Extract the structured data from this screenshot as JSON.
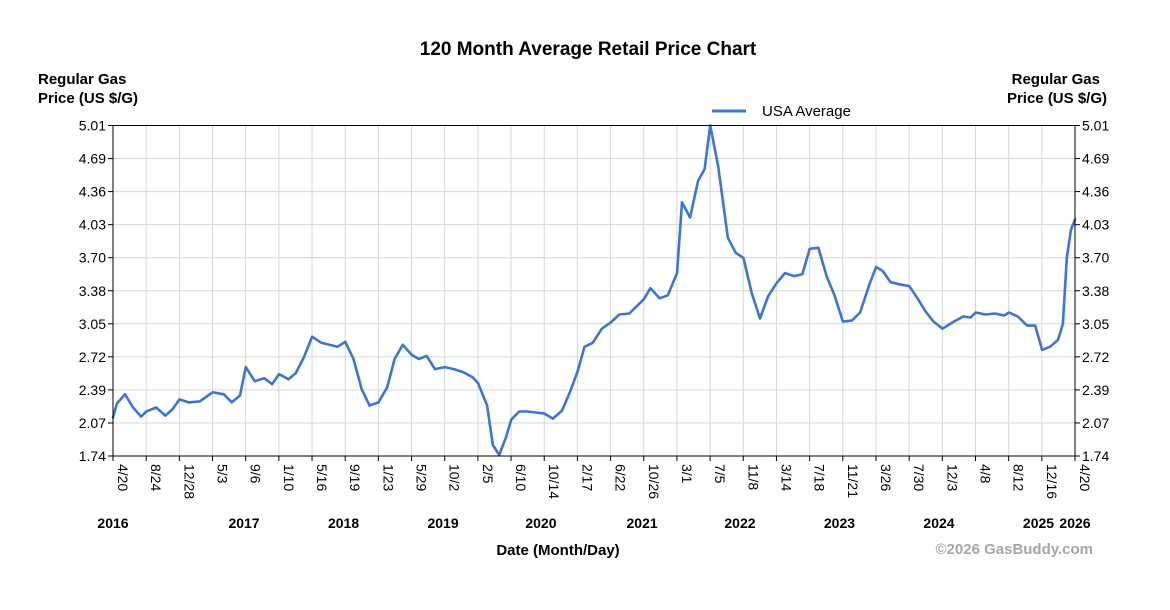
{
  "chart_data": {
    "type": "line",
    "title": "120 Month Average Retail Price Chart",
    "ylabel_left": [
      "Regular Gas",
      "Price (US $/G)"
    ],
    "ylabel_right": [
      "Regular Gas",
      "Price (US $/G)"
    ],
    "xlabel": "Date (Month/Day)",
    "copyright": "©2026 GasBuddy.com",
    "ylim": [
      1.74,
      5.01
    ],
    "yticks": [
      "5.01",
      "4.69",
      "4.36",
      "4.03",
      "3.70",
      "3.38",
      "3.05",
      "2.72",
      "2.39",
      "2.07",
      "1.74"
    ],
    "xticks": [
      "4/20",
      "8/24",
      "12/28",
      "5/3",
      "9/6",
      "1/10",
      "5/16",
      "9/19",
      "1/23",
      "5/29",
      "10/2",
      "2/5",
      "6/10",
      "10/14",
      "2/17",
      "6/22",
      "10/26",
      "3/1",
      "7/5",
      "11/8",
      "3/14",
      "7/18",
      "11/21",
      "3/26",
      "7/30",
      "12/3",
      "4/8",
      "8/12",
      "12/16",
      "4/20"
    ],
    "years": [
      "2016",
      "2017",
      "2018",
      "2019",
      "2020",
      "2021",
      "2022",
      "2023",
      "2024",
      "2025",
      "2026"
    ],
    "grid": true,
    "legend_position": "top-right",
    "series": [
      {
        "name": "USA Average",
        "color": "#3d76d0",
        "x": [
          "2016-04-20",
          "2016-05-05",
          "2016-06-05",
          "2016-07-05",
          "2016-08-05",
          "2016-08-24",
          "2016-10-01",
          "2016-11-05",
          "2016-12-01",
          "2016-12-28",
          "2017-02-01",
          "2017-03-15",
          "2017-05-03",
          "2017-06-15",
          "2017-07-15",
          "2017-08-15",
          "2017-09-06",
          "2017-10-10",
          "2017-11-15",
          "2017-12-15",
          "2018-01-10",
          "2018-02-15",
          "2018-03-15",
          "2018-04-15",
          "2018-05-16",
          "2018-06-20",
          "2018-07-20",
          "2018-08-20",
          "2018-09-19",
          "2018-10-20",
          "2018-11-20",
          "2018-12-20",
          "2019-01-23",
          "2019-02-25",
          "2019-03-25",
          "2019-04-25",
          "2019-05-29",
          "2019-06-25",
          "2019-07-25",
          "2019-08-25",
          "2019-10-02",
          "2019-11-05",
          "2019-12-10",
          "2020-01-15",
          "2020-02-05",
          "2020-03-10",
          "2020-04-01",
          "2020-04-25",
          "2020-05-20",
          "2020-06-10",
          "2020-07-10",
          "2020-08-10",
          "2020-09-10",
          "2020-10-14",
          "2020-11-15",
          "2020-12-20",
          "2021-01-20",
          "2021-02-17",
          "2021-03-15",
          "2021-04-15",
          "2021-05-20",
          "2021-06-22",
          "2021-07-25",
          "2021-09-01",
          "2021-10-26",
          "2021-11-20",
          "2021-12-25",
          "2022-01-25",
          "2022-03-01",
          "2022-03-20",
          "2022-04-20",
          "2022-05-20",
          "2022-06-14",
          "2022-07-05",
          "2022-08-05",
          "2022-09-10",
          "2022-10-10",
          "2022-11-08",
          "2022-12-10",
          "2023-01-10",
          "2023-02-10",
          "2023-03-14",
          "2023-04-15",
          "2023-05-20",
          "2023-06-20",
          "2023-07-18",
          "2023-08-20",
          "2023-09-20",
          "2023-10-20",
          "2023-11-21",
          "2023-12-25",
          "2024-01-25",
          "2024-03-01",
          "2024-03-26",
          "2024-04-20",
          "2024-05-20",
          "2024-06-20",
          "2024-07-30",
          "2024-08-30",
          "2024-09-30",
          "2024-10-30",
          "2024-12-03",
          "2025-01-15",
          "2025-02-20",
          "2025-03-20",
          "2025-04-08",
          "2025-05-15",
          "2025-06-20",
          "2025-07-25",
          "2025-08-12",
          "2025-09-15",
          "2025-10-20",
          "2025-11-20",
          "2025-12-16",
          "2026-01-15",
          "2026-02-15",
          "2026-03-05",
          "2026-03-20",
          "2026-04-05",
          "2026-04-20"
        ],
        "y": [
          2.12,
          2.26,
          2.35,
          2.22,
          2.13,
          2.18,
          2.22,
          2.14,
          2.2,
          2.3,
          2.27,
          2.28,
          2.37,
          2.35,
          2.27,
          2.34,
          2.62,
          2.48,
          2.51,
          2.45,
          2.55,
          2.5,
          2.56,
          2.72,
          2.92,
          2.86,
          2.84,
          2.82,
          2.87,
          2.7,
          2.4,
          2.24,
          2.27,
          2.42,
          2.7,
          2.84,
          2.74,
          2.7,
          2.73,
          2.6,
          2.62,
          2.6,
          2.57,
          2.52,
          2.46,
          2.24,
          1.85,
          1.75,
          1.92,
          2.1,
          2.18,
          2.18,
          2.17,
          2.16,
          2.11,
          2.19,
          2.38,
          2.58,
          2.82,
          2.86,
          3.0,
          3.06,
          3.14,
          3.15,
          3.29,
          3.4,
          3.3,
          3.33,
          3.55,
          4.25,
          4.1,
          4.46,
          4.58,
          5.01,
          4.6,
          3.9,
          3.75,
          3.7,
          3.35,
          3.1,
          3.32,
          3.45,
          3.55,
          3.52,
          3.54,
          3.79,
          3.8,
          3.52,
          3.33,
          3.07,
          3.08,
          3.16,
          3.44,
          3.61,
          3.57,
          3.46,
          3.44,
          3.42,
          3.3,
          3.17,
          3.07,
          3.0,
          3.07,
          3.12,
          3.11,
          3.16,
          3.14,
          3.15,
          3.13,
          3.16,
          3.12,
          3.03,
          3.03,
          2.79,
          2.82,
          2.89,
          3.05,
          3.7,
          3.98,
          4.08
        ]
      }
    ]
  }
}
